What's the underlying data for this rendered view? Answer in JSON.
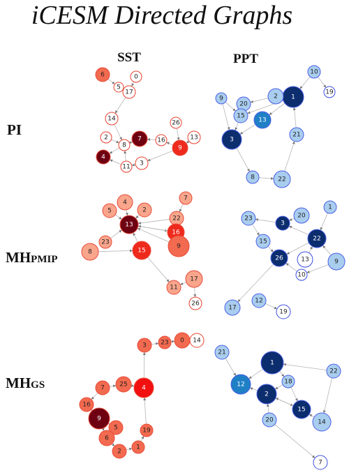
{
  "title": "iCESM Directed Graphs",
  "column_headers": [
    "SST",
    "PPT"
  ],
  "row_labels": [
    {
      "main": "PI"
    },
    {
      "main": "MH",
      "sub": "PMIP"
    },
    {
      "main": "MH",
      "sub": "GS"
    }
  ],
  "graphs": [
    {
      "nodes": [
        "6",
        "0",
        "5",
        "17",
        "14",
        "26",
        "2",
        "7",
        "16",
        "13",
        "8",
        "9",
        "4",
        "11",
        "3"
      ]
    },
    {
      "nodes": [
        "10",
        "19",
        "1",
        "2",
        "9",
        "20",
        "15",
        "13",
        "3",
        "21",
        "8",
        "22"
      ]
    },
    {
      "nodes": [
        "7",
        "4",
        "2",
        "5",
        "22",
        "13",
        "23",
        "16",
        "9",
        "8",
        "15",
        "17",
        "11",
        "26"
      ]
    },
    {
      "nodes": [
        "1",
        "20",
        "23",
        "3",
        "22",
        "15",
        "26",
        "13",
        "9",
        "10",
        "17",
        "12",
        "19"
      ]
    },
    {
      "nodes": [
        "3",
        "23",
        "0",
        "14",
        "7",
        "25",
        "4",
        "16",
        "9",
        "5",
        "19",
        "6",
        "2",
        "1"
      ]
    },
    {
      "nodes": [
        "21",
        "1",
        "22",
        "18",
        "12",
        "2",
        "15",
        "14",
        "20",
        "7"
      ]
    }
  ]
}
